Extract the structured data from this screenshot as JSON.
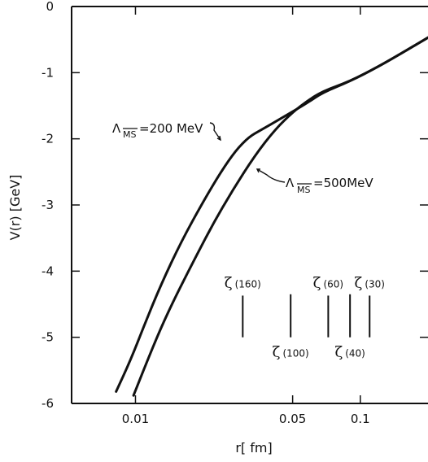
{
  "chart_data": {
    "type": "line",
    "title": "",
    "xlabel": "r[ fm]",
    "ylabel": "V(r) [GeV]",
    "x_scale": "log",
    "xlim": [
      0.0052,
      0.2
    ],
    "ylim": [
      -6,
      0
    ],
    "x_ticks": [
      {
        "value": 0.01,
        "label": "0.01"
      },
      {
        "value": 0.05,
        "label": "0.05"
      },
      {
        "value": 0.1,
        "label": "0.1"
      }
    ],
    "y_ticks": [
      {
        "value": 0,
        "label": "0"
      },
      {
        "value": -1,
        "label": "-1"
      },
      {
        "value": -2,
        "label": "-2"
      },
      {
        "value": -3,
        "label": "-3"
      },
      {
        "value": -4,
        "label": "-4"
      },
      {
        "value": -5,
        "label": "-5"
      },
      {
        "value": -6,
        "label": "-6"
      }
    ],
    "grid": false,
    "legend": "none",
    "series": [
      {
        "name": "Λ_MS = 200 MeV",
        "points": [
          [
            0.0082,
            -5.82
          ],
          [
            0.0095,
            -5.35
          ],
          [
            0.011,
            -4.8
          ],
          [
            0.013,
            -4.2
          ],
          [
            0.016,
            -3.55
          ],
          [
            0.02,
            -2.95
          ],
          [
            0.024,
            -2.5
          ],
          [
            0.028,
            -2.17
          ],
          [
            0.032,
            -1.97
          ],
          [
            0.036,
            -1.87
          ],
          [
            0.045,
            -1.68
          ],
          [
            0.058,
            -1.46
          ],
          [
            0.068,
            -1.3
          ],
          [
            0.09,
            -1.13
          ],
          [
            0.12,
            -0.91
          ],
          [
            0.15,
            -0.72
          ],
          [
            0.2,
            -0.47
          ]
        ]
      },
      {
        "name": "Λ_MS = 500 MeV",
        "points": [
          [
            0.0098,
            -5.88
          ],
          [
            0.011,
            -5.45
          ],
          [
            0.013,
            -4.85
          ],
          [
            0.015,
            -4.4
          ],
          [
            0.018,
            -3.87
          ],
          [
            0.022,
            -3.3
          ],
          [
            0.027,
            -2.78
          ],
          [
            0.034,
            -2.25
          ],
          [
            0.042,
            -1.85
          ],
          [
            0.05,
            -1.6
          ],
          [
            0.058,
            -1.43
          ],
          [
            0.068,
            -1.28
          ],
          [
            0.09,
            -1.13
          ],
          [
            0.12,
            -0.91
          ],
          [
            0.15,
            -0.72
          ],
          [
            0.2,
            -0.47
          ]
        ]
      }
    ],
    "annotations": [
      {
        "prefix": "Λ",
        "sub": "MS",
        "text": "=200 MeV"
      },
      {
        "prefix": "Λ",
        "sub": "MS",
        "text": "=500MeV"
      }
    ],
    "zeta_markers": [
      {
        "symbol": "ζ",
        "label": "(160)",
        "r": 0.03,
        "v_top": -4.37,
        "v_bottom": -5.0,
        "label_pos": "above"
      },
      {
        "symbol": "ζ",
        "label": "(100)",
        "r": 0.049,
        "v_top": -4.35,
        "v_bottom": -5.0,
        "label_pos": "below"
      },
      {
        "symbol": "ζ",
        "label": "(60)",
        "r": 0.072,
        "v_top": -4.37,
        "v_bottom": -5.0,
        "label_pos": "above"
      },
      {
        "symbol": "ζ",
        "label": "(40)",
        "r": 0.09,
        "v_top": -4.35,
        "v_bottom": -5.0,
        "label_pos": "below"
      },
      {
        "symbol": "ζ",
        "label": "(30)",
        "r": 0.11,
        "v_top": -4.37,
        "v_bottom": -5.0,
        "label_pos": "above"
      }
    ]
  }
}
